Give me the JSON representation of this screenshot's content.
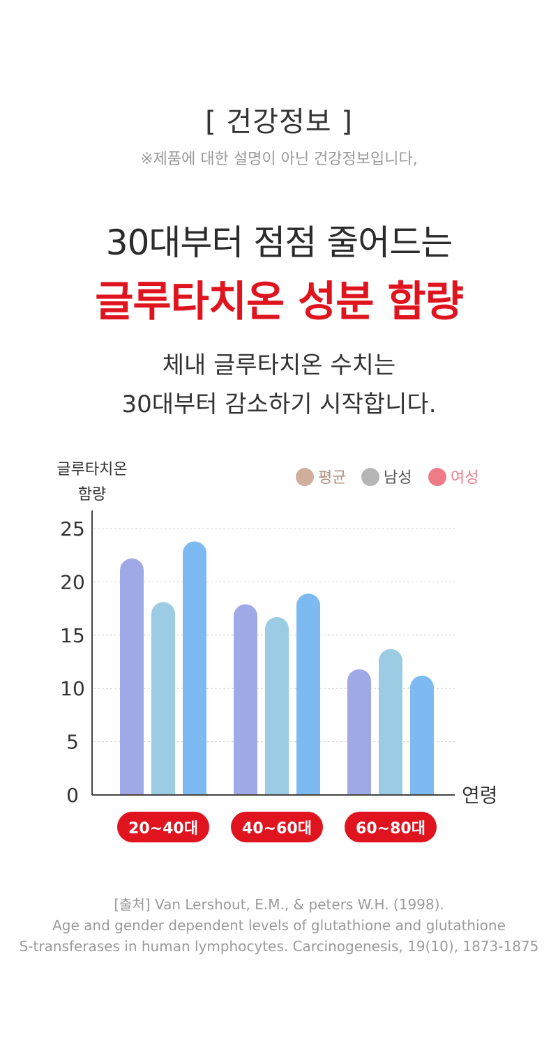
{
  "header": {
    "section_tag": "[ 건강정보 ]",
    "notice": "※제품에 대한 설명이 아닌 건강정보입니다,"
  },
  "headline": {
    "line1": "30대부터 점점 줄어드는",
    "line2": "글루타치온 성분 함량"
  },
  "description": {
    "line1": "체내 글루타치온 수치는",
    "line2": "30대부터 감소하기 시작합니다."
  },
  "colors": {
    "accent_red": "#e0141e",
    "bar_average": "#9fa9e6",
    "bar_male": "#9ccbe4",
    "bar_female": "#7ebaf2",
    "legend_average": "#cfae9c",
    "legend_male": "#b5b5b5",
    "legend_female": "#ee7b86"
  },
  "chart_data": {
    "type": "bar",
    "ylabel_line1": "글루타치온",
    "ylabel_line2": "함량",
    "xlabel": "연령",
    "ylim": [
      0,
      25
    ],
    "yticks": [
      "0",
      "5",
      "10",
      "15",
      "20",
      "25"
    ],
    "grid": true,
    "legend_position": "top-right",
    "categories": [
      "20~40대",
      "40~60대",
      "60~80대"
    ],
    "series": [
      {
        "name": "평균",
        "values": [
          22.2,
          17.9,
          11.8
        ]
      },
      {
        "name": "남성",
        "values": [
          18.1,
          16.7,
          13.7
        ]
      },
      {
        "name": "여성",
        "values": [
          23.8,
          18.9,
          11.2
        ]
      }
    ]
  },
  "source": {
    "line1": "[출처] Van Lershout, E.M., & peters W.H. (1998).",
    "line2": "Age and gender dependent levels of glutathione and glutathione",
    "line3": "S-transferases in human lymphocytes. Carcinogenesis, 19(10), 1873-1875"
  }
}
